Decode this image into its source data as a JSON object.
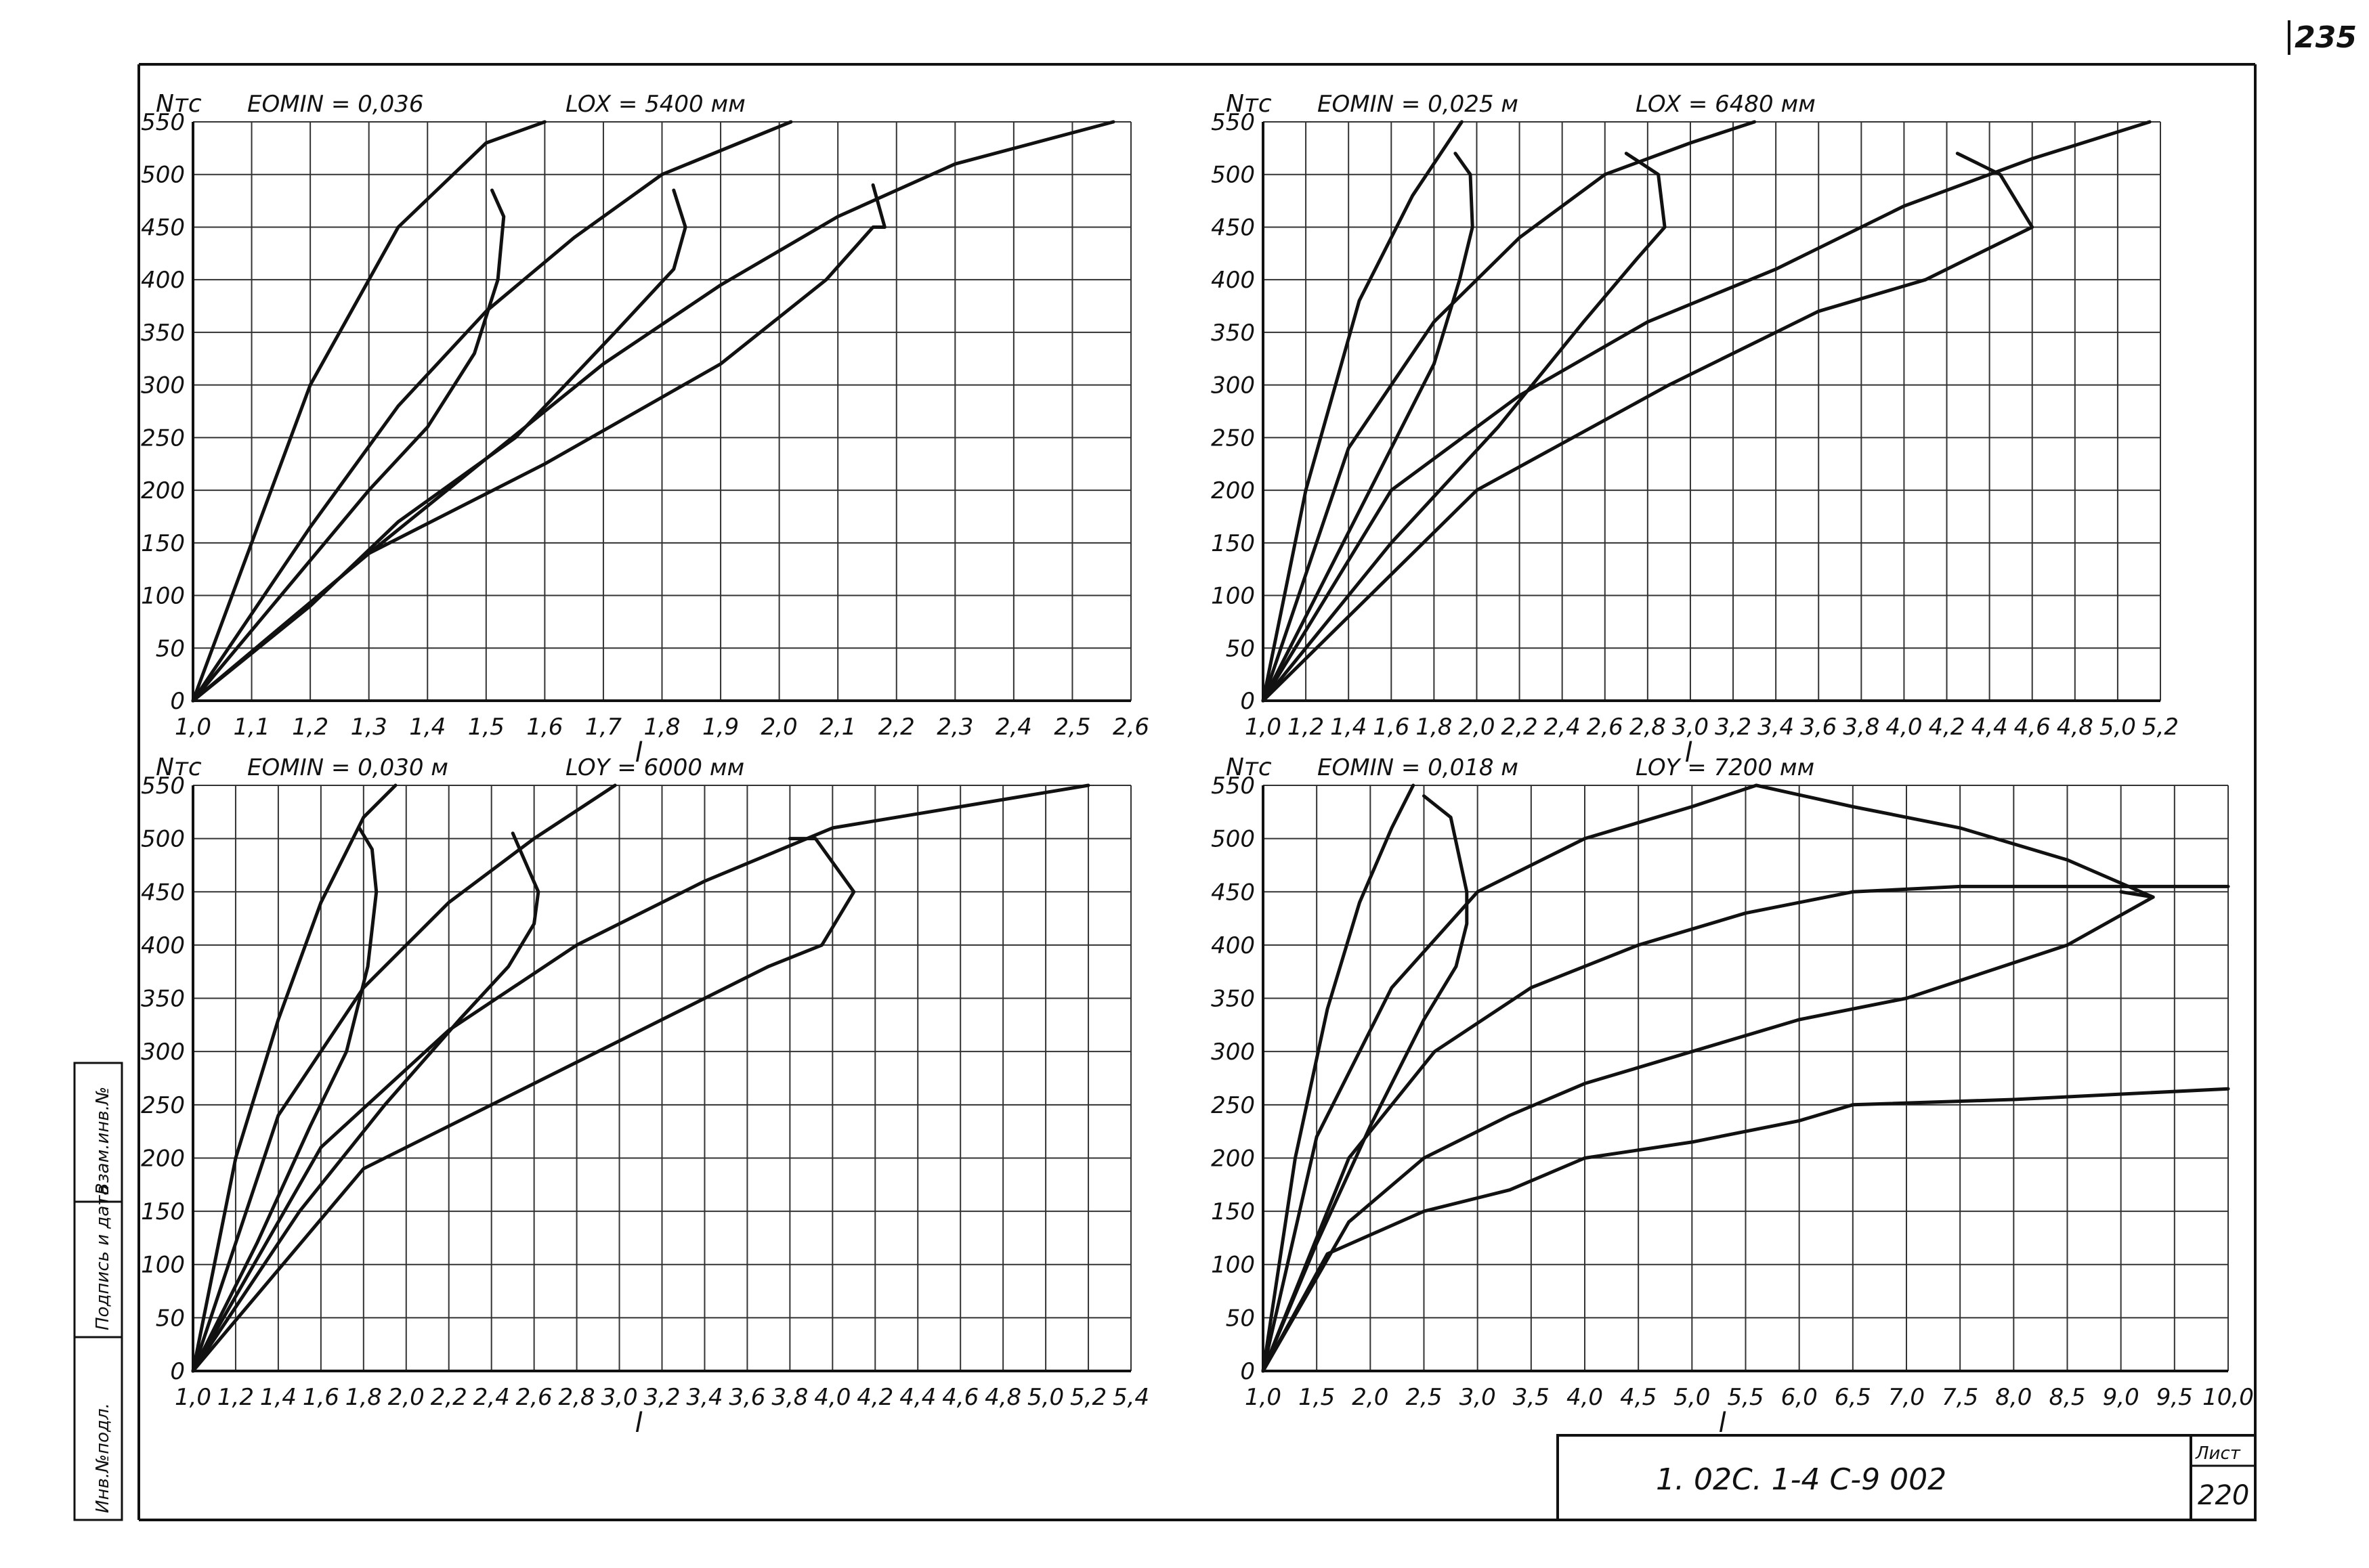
{
  "page": {
    "number": "235"
  },
  "title_block": {
    "code": "1. 02С. 1-4     С-9   002",
    "sheet_label": "Лист",
    "sheet_number": "220"
  },
  "margin_stamp": [
    "Инв.№подл.",
    "Подпись и дата",
    "Взам.инв.№"
  ],
  "chart_data": [
    {
      "type": "line",
      "ylabel": "Nтс",
      "xlabel": "l",
      "annotations": [
        "EOMIN = 0,036",
        "LOX = 5400 мм"
      ],
      "xlim": [
        1.0,
        2.6
      ],
      "ylim": [
        0,
        550
      ],
      "x_ticks": [
        1.0,
        1.1,
        1.2,
        1.3,
        1.4,
        1.5,
        1.6,
        1.7,
        1.8,
        1.9,
        2.0,
        2.1,
        2.2,
        2.3,
        2.4,
        2.5,
        2.6
      ],
      "x_tick_labels": [
        "1,0",
        "1,1",
        "1,2",
        "1,3",
        "1,4",
        "1,5",
        "1,6",
        "1,7",
        "1,8",
        "1,9",
        "2,0",
        "2,1",
        "2,2",
        "2,3",
        "2,4",
        "2,5",
        "2,6"
      ],
      "y_ticks": [
        0,
        50,
        100,
        150,
        200,
        250,
        300,
        350,
        400,
        450,
        500,
        550
      ],
      "grid": true,
      "series": [
        {
          "x": [
            1.0,
            1.2,
            1.35,
            1.5,
            1.6
          ],
          "y": [
            0,
            300,
            450,
            530,
            550
          ]
        },
        {
          "x": [
            1.0,
            1.2,
            1.35,
            1.5,
            1.65,
            1.8,
            2.02
          ],
          "y": [
            0,
            165,
            280,
            370,
            440,
            500,
            550
          ]
        },
        {
          "x": [
            1.0,
            1.3,
            1.5,
            1.7,
            1.9,
            2.1,
            2.3,
            2.57
          ],
          "y": [
            0,
            140,
            230,
            320,
            395,
            460,
            510,
            550
          ]
        },
        {
          "x": [
            1.0,
            1.15,
            1.3,
            1.4,
            1.48,
            1.52,
            1.53,
            1.51
          ],
          "y": [
            0,
            100,
            200,
            260,
            330,
            400,
            460,
            485
          ]
        },
        {
          "x": [
            1.0,
            1.2,
            1.35,
            1.55,
            1.72,
            1.82,
            1.84,
            1.82
          ],
          "y": [
            0,
            90,
            170,
            250,
            350,
            410,
            450,
            485
          ]
        },
        {
          "x": [
            1.0,
            1.3,
            1.6,
            1.9,
            2.08,
            2.16,
            2.18,
            2.16
          ],
          "y": [
            0,
            140,
            225,
            320,
            400,
            450,
            450,
            490
          ]
        }
      ]
    },
    {
      "type": "line",
      "ylabel": "Nтс",
      "xlabel": "l",
      "annotations": [
        "EOMIN = 0,025 м",
        "LOX = 6480 мм"
      ],
      "xlim": [
        1.0,
        5.2
      ],
      "ylim": [
        0,
        550
      ],
      "x_ticks": [
        1.0,
        1.2,
        1.4,
        1.6,
        1.8,
        2.0,
        2.2,
        2.4,
        2.6,
        2.8,
        3.0,
        3.2,
        3.4,
        3.6,
        3.8,
        4.0,
        4.2,
        4.4,
        4.6,
        4.8,
        5.0,
        5.2
      ],
      "x_tick_labels": [
        "1,0",
        "1,2",
        "1,4",
        "1,6",
        "1,8",
        "2,0",
        "2,2",
        "2,4",
        "2,6",
        "2,8",
        "3,0",
        "3,2",
        "3,4",
        "3,6",
        "3,8",
        "4,0",
        "4,2",
        "4,4",
        "4,6",
        "4,8",
        "5,0",
        "5,2"
      ],
      "y_ticks": [
        0,
        50,
        100,
        150,
        200,
        250,
        300,
        350,
        400,
        450,
        500,
        550
      ],
      "grid": true,
      "series": [
        {
          "x": [
            1.0,
            1.2,
            1.45,
            1.7,
            1.93
          ],
          "y": [
            0,
            200,
            380,
            480,
            550
          ]
        },
        {
          "x": [
            1.0,
            1.4,
            1.8,
            2.2,
            2.6,
            3.0,
            3.3
          ],
          "y": [
            0,
            240,
            360,
            440,
            500,
            530,
            550
          ]
        },
        {
          "x": [
            1.0,
            1.6,
            2.2,
            2.8,
            3.4,
            4.0,
            4.6,
            5.15
          ],
          "y": [
            0,
            200,
            290,
            360,
            410,
            470,
            515,
            550
          ]
        },
        {
          "x": [
            1.0,
            1.3,
            1.6,
            1.8,
            1.92,
            1.98,
            1.97,
            1.9
          ],
          "y": [
            0,
            120,
            240,
            320,
            400,
            450,
            500,
            520
          ]
        },
        {
          "x": [
            1.0,
            1.6,
            2.1,
            2.5,
            2.75,
            2.88,
            2.85,
            2.7
          ],
          "y": [
            0,
            150,
            260,
            360,
            420,
            450,
            500,
            520
          ]
        },
        {
          "x": [
            1.0,
            2.0,
            2.9,
            3.6,
            4.1,
            4.4,
            4.6,
            4.45,
            4.25
          ],
          "y": [
            0,
            200,
            300,
            370,
            400,
            430,
            450,
            500,
            520
          ]
        }
      ]
    },
    {
      "type": "line",
      "ylabel": "Nтс",
      "xlabel": "l",
      "annotations": [
        "EOMIN = 0,030 м",
        "LOY = 6000 мм"
      ],
      "xlim": [
        1.0,
        5.4
      ],
      "ylim": [
        0,
        550
      ],
      "x_ticks": [
        1.0,
        1.2,
        1.4,
        1.6,
        1.8,
        2.0,
        2.2,
        2.4,
        2.6,
        2.8,
        3.0,
        3.2,
        3.4,
        3.6,
        3.8,
        4.0,
        4.2,
        4.4,
        4.6,
        4.8,
        5.0,
        5.2,
        5.4
      ],
      "x_tick_labels": [
        "1,0",
        "1,2",
        "1,4",
        "1,6",
        "1,8",
        "2,0",
        "2,2",
        "2,4",
        "2,6",
        "2,8",
        "3,0",
        "3,2",
        "3,4",
        "3,6",
        "3,8",
        "4,0",
        "4,2",
        "4,4",
        "4,6",
        "4,8",
        "5,0",
        "5,2",
        "5,4"
      ],
      "y_ticks": [
        0,
        50,
        100,
        150,
        200,
        250,
        300,
        350,
        400,
        450,
        500,
        550
      ],
      "grid": true,
      "series": [
        {
          "x": [
            1.0,
            1.2,
            1.4,
            1.6,
            1.8,
            1.95
          ],
          "y": [
            0,
            200,
            330,
            440,
            520,
            550
          ]
        },
        {
          "x": [
            1.0,
            1.4,
            1.8,
            2.2,
            2.6,
            2.98
          ],
          "y": [
            0,
            240,
            360,
            440,
            500,
            550
          ]
        },
        {
          "x": [
            1.0,
            1.6,
            2.2,
            2.8,
            3.4,
            4.0,
            4.6,
            5.2
          ],
          "y": [
            0,
            210,
            320,
            400,
            460,
            510,
            530,
            550
          ]
        },
        {
          "x": [
            1.0,
            1.3,
            1.55,
            1.72,
            1.82,
            1.86,
            1.84,
            1.78
          ],
          "y": [
            0,
            120,
            230,
            300,
            380,
            450,
            490,
            510
          ]
        },
        {
          "x": [
            1.0,
            1.5,
            1.9,
            2.25,
            2.48,
            2.6,
            2.62,
            2.5
          ],
          "y": [
            0,
            150,
            250,
            330,
            380,
            420,
            450,
            505
          ]
        },
        {
          "x": [
            1.0,
            1.8,
            2.6,
            3.2,
            3.7,
            3.95,
            4.1,
            3.92,
            3.8
          ],
          "y": [
            0,
            190,
            270,
            330,
            380,
            400,
            450,
            500,
            500
          ]
        }
      ]
    },
    {
      "type": "line",
      "ylabel": "Nтс",
      "xlabel": "l",
      "annotations": [
        "EOMIN = 0,018 м",
        "LOY = 7200 мм"
      ],
      "xlim": [
        1.0,
        10.0
      ],
      "ylim": [
        0,
        550
      ],
      "x_ticks": [
        1.0,
        1.5,
        2.0,
        2.5,
        3.0,
        3.5,
        4.0,
        4.5,
        5.0,
        5.5,
        6.0,
        6.5,
        7.0,
        7.5,
        8.0,
        8.5,
        9.0,
        9.5,
        10.0
      ],
      "x_tick_labels": [
        "1,0",
        "1,5",
        "2,0",
        "2,5",
        "3,0",
        "3,5",
        "4,0",
        "4,5",
        "5,0",
        "5,5",
        "6,0",
        "6,5",
        "7,0",
        "7,5",
        "8,0",
        "8,5",
        "9,0",
        "9,5",
        "10,0"
      ],
      "y_ticks": [
        0,
        50,
        100,
        150,
        200,
        250,
        300,
        350,
        400,
        450,
        500,
        550
      ],
      "grid": true,
      "series": [
        {
          "x": [
            1.0,
            1.3,
            1.6,
            1.9,
            2.2,
            2.4
          ],
          "y": [
            0,
            200,
            340,
            440,
            510,
            550
          ]
        },
        {
          "x": [
            1.0,
            1.5,
            2.2,
            3.0,
            4.0,
            5.0,
            5.6
          ],
          "y": [
            0,
            220,
            360,
            450,
            500,
            530,
            550
          ]
        },
        {
          "x": [
            1.0,
            1.8,
            2.6,
            3.5,
            4.5,
            5.5,
            6.5,
            7.5,
            10.0
          ],
          "y": [
            0,
            200,
            300,
            360,
            400,
            430,
            450,
            455,
            455
          ]
        },
        {
          "x": [
            1.0,
            1.8,
            2.5,
            3.3,
            4.0,
            5.0,
            6.0,
            7.0,
            8.5,
            9.3
          ],
          "y": [
            0,
            140,
            200,
            240,
            270,
            300,
            330,
            350,
            400,
            445
          ]
        },
        {
          "x": [
            1.0,
            1.6,
            2.5,
            3.3,
            4.0,
            5.0,
            6.0,
            6.5,
            8.0,
            10.0
          ],
          "y": [
            0,
            110,
            150,
            170,
            200,
            215,
            235,
            250,
            255,
            265
          ]
        },
        {
          "x": [
            1.0,
            1.5,
            2.0,
            2.5,
            2.8,
            2.9,
            2.9,
            2.75,
            2.5
          ],
          "y": [
            0,
            120,
            230,
            330,
            380,
            420,
            450,
            520,
            540
          ]
        },
        {
          "x": [
            5.6,
            6.5,
            7.5,
            8.5,
            9.3,
            9.0
          ],
          "y": [
            550,
            530,
            510,
            480,
            445,
            450
          ]
        }
      ]
    }
  ]
}
